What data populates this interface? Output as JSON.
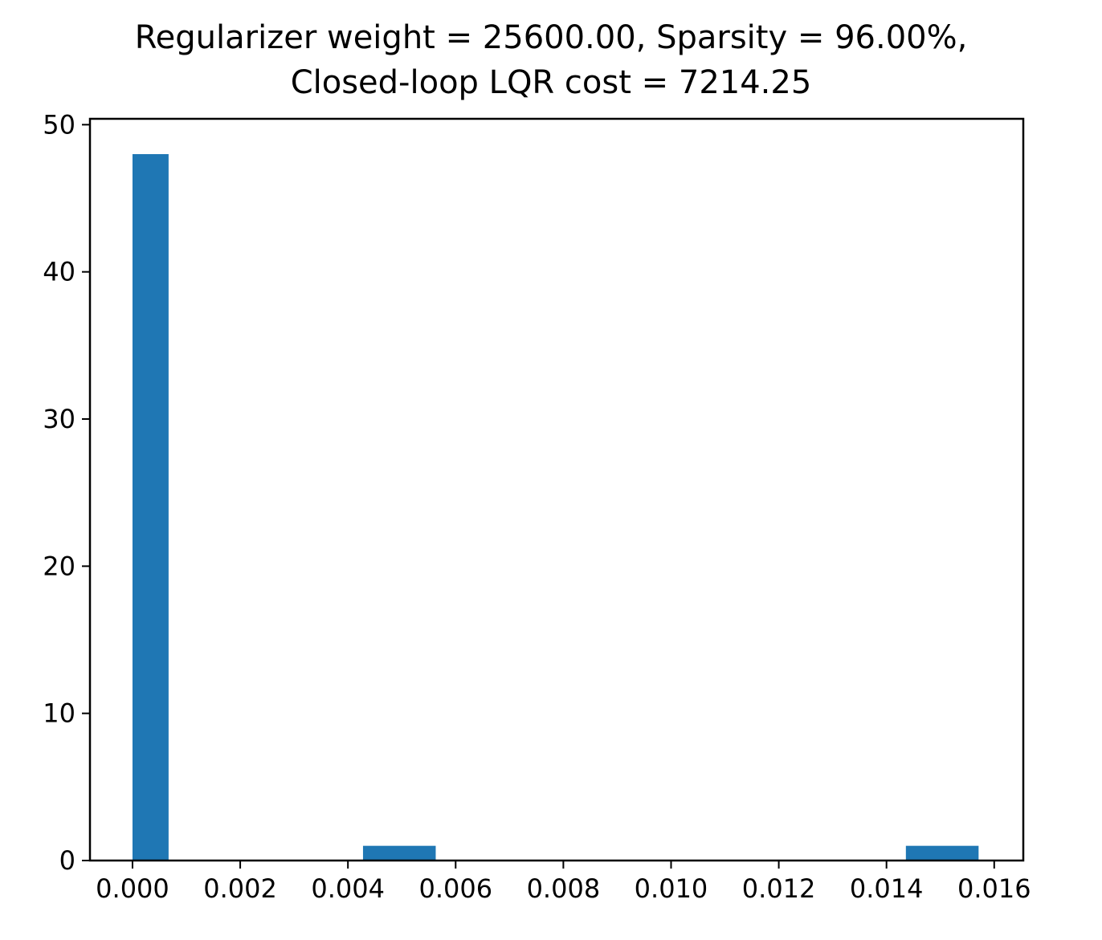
{
  "chart_data": {
    "type": "bar",
    "title": "Regularizer weight = 25600.00, Sparsity = 96.00%,",
    "subtitle": "Closed-loop LQR cost = 7214.25",
    "xlabel": "",
    "ylabel": "",
    "xlim": [
      -0.00079,
      0.01654
    ],
    "ylim": [
      0,
      50.4
    ],
    "xticks": [
      "0.000",
      "0.002",
      "0.004",
      "0.006",
      "0.008",
      "0.010",
      "0.012",
      "0.014",
      "0.016"
    ],
    "xtick_values": [
      0,
      0.002,
      0.004,
      0.006,
      0.008,
      0.01,
      0.012,
      0.014,
      0.016
    ],
    "yticks": [
      "0",
      "10",
      "20",
      "30",
      "40",
      "50"
    ],
    "ytick_values": [
      0,
      10,
      20,
      30,
      40,
      50
    ],
    "bins": [
      {
        "x0": 0.0,
        "x1": 0.00067,
        "count": 48
      },
      {
        "x0": 0.00428,
        "x1": 0.00563,
        "count": 1
      },
      {
        "x0": 0.01436,
        "x1": 0.01571,
        "count": 1
      }
    ],
    "bar_color": "#1f77b4",
    "grid": false,
    "legend": "none"
  }
}
